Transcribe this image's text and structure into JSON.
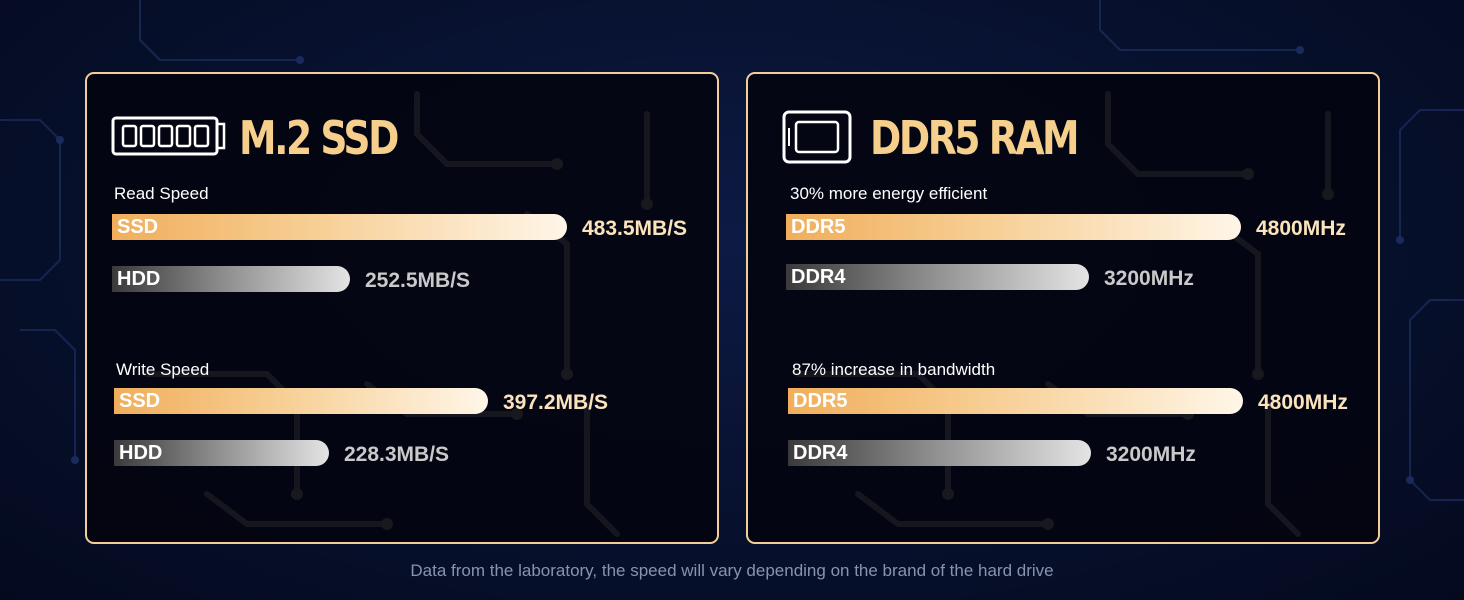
{
  "footnote": "Data from the laboratory, the speed will vary depending on the brand of the hard drive",
  "colors": {
    "accent_gold": "#f6cf8c",
    "bar_gold": "#f0ae5c",
    "bar_gray": "#8a8a8a",
    "background": "#07112e"
  },
  "chart_data": [
    {
      "type": "bar",
      "title": "M.2 SSD",
      "icon": "ssd-stick-icon",
      "groups": [
        {
          "label": "Read Speed",
          "bars": [
            {
              "category": "SSD",
              "value": 483.5,
              "value_label": "483.5MB/S",
              "style": "gold"
            },
            {
              "category": "HDD",
              "value": 252.5,
              "value_label": "252.5MB/S",
              "style": "gray"
            }
          ]
        },
        {
          "label": "Write Speed",
          "bars": [
            {
              "category": "SSD",
              "value": 397.2,
              "value_label": "397.2MB/S",
              "style": "gold"
            },
            {
              "category": "HDD",
              "value": 228.3,
              "value_label": "228.3MB/S",
              "style": "gray"
            }
          ]
        }
      ]
    },
    {
      "type": "bar",
      "title": "DDR5 RAM",
      "icon": "ram-chip-icon",
      "groups": [
        {
          "label": "30% more energy efficient",
          "bars": [
            {
              "category": "DDR5",
              "value": 4800,
              "value_label": "4800MHz",
              "style": "gold"
            },
            {
              "category": "DDR4",
              "value": 3200,
              "value_label": "3200MHz",
              "style": "gray"
            }
          ]
        },
        {
          "label": "87% increase in bandwidth",
          "bars": [
            {
              "category": "DDR5",
              "value": 4800,
              "value_label": "4800MHz",
              "style": "gold"
            },
            {
              "category": "DDR4",
              "value": 3200,
              "value_label": "3200MHz",
              "style": "gray"
            }
          ]
        }
      ]
    }
  ]
}
